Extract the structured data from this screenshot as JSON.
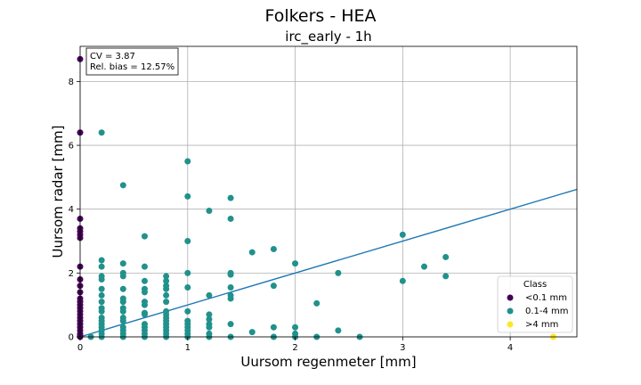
{
  "colors": {
    "class_lt01": "#440154",
    "class_01_4": "#21918c",
    "class_gt4": "#fde725",
    "fit_line": "#1f77b4",
    "grid": "#b0b0b0"
  },
  "chart_data": {
    "type": "scatter",
    "title": "Folkers - HEA",
    "subtitle": "irc_early - 1h",
    "xlabel": "Uursom regenmeter [mm]",
    "ylabel": "Uursom radar [mm]",
    "xlim": [
      0,
      4.62
    ],
    "ylim": [
      0,
      9.1
    ],
    "xticks": [
      0,
      1,
      2,
      3,
      4
    ],
    "yticks": [
      0,
      2,
      4,
      6,
      8
    ],
    "grid": true,
    "stats_box": {
      "cv": "CV = 3.87",
      "bias": "Rel. bias = 12.57%"
    },
    "legend": {
      "title": "Class",
      "position": "bottom-right"
    },
    "series": [
      {
        "name": "<0.1 mm",
        "color": "#440154",
        "points": [
          [
            0,
            8.7
          ],
          [
            0,
            6.4
          ],
          [
            0,
            3.7
          ],
          [
            0,
            3.4
          ],
          [
            0,
            3.3
          ],
          [
            0,
            3.2
          ],
          [
            0,
            3.1
          ],
          [
            0,
            2.2
          ],
          [
            0,
            1.8
          ],
          [
            0,
            1.6
          ],
          [
            0,
            1.4
          ],
          [
            0,
            1.2
          ],
          [
            0,
            1.1
          ],
          [
            0,
            1.0
          ],
          [
            0,
            0.9
          ],
          [
            0,
            0.8
          ],
          [
            0,
            0.7
          ],
          [
            0,
            0.6
          ],
          [
            0,
            0.5
          ],
          [
            0,
            0.4
          ],
          [
            0,
            0.3
          ],
          [
            0,
            0.2
          ],
          [
            0,
            0.1
          ],
          [
            0,
            0.05
          ],
          [
            0,
            0
          ]
        ]
      },
      {
        "name": "0.1-4 mm",
        "color": "#21918c",
        "points": [
          [
            0.1,
            0
          ],
          [
            0.2,
            6.4
          ],
          [
            0.2,
            2.4
          ],
          [
            0.2,
            2.2
          ],
          [
            0.2,
            1.9
          ],
          [
            0.2,
            1.8
          ],
          [
            0.2,
            1.5
          ],
          [
            0.2,
            1.3
          ],
          [
            0.2,
            1.1
          ],
          [
            0.2,
            0.9
          ],
          [
            0.2,
            0.8
          ],
          [
            0.2,
            0.6
          ],
          [
            0.2,
            0.5
          ],
          [
            0.2,
            0.4
          ],
          [
            0.2,
            0.3
          ],
          [
            0.2,
            0.2
          ],
          [
            0.2,
            0.1
          ],
          [
            0.2,
            0
          ],
          [
            0.4,
            4.75
          ],
          [
            0.4,
            2.3
          ],
          [
            0.4,
            2.0
          ],
          [
            0.4,
            1.9
          ],
          [
            0.4,
            1.5
          ],
          [
            0.4,
            1.2
          ],
          [
            0.4,
            1.1
          ],
          [
            0.4,
            0.9
          ],
          [
            0.4,
            0.8
          ],
          [
            0.4,
            0.6
          ],
          [
            0.4,
            0.5
          ],
          [
            0.4,
            0.3
          ],
          [
            0.4,
            0.2
          ],
          [
            0.4,
            0.1
          ],
          [
            0.4,
            0
          ],
          [
            0.6,
            3.15
          ],
          [
            0.6,
            2.2
          ],
          [
            0.6,
            1.75
          ],
          [
            0.6,
            1.5
          ],
          [
            0.6,
            1.4
          ],
          [
            0.6,
            1.1
          ],
          [
            0.6,
            1.0
          ],
          [
            0.6,
            0.75
          ],
          [
            0.6,
            0.7
          ],
          [
            0.6,
            0.4
          ],
          [
            0.6,
            0.3
          ],
          [
            0.6,
            0.2
          ],
          [
            0.6,
            0.1
          ],
          [
            0.6,
            0
          ],
          [
            0.8,
            1.9
          ],
          [
            0.8,
            1.75
          ],
          [
            0.8,
            1.6
          ],
          [
            0.8,
            1.5
          ],
          [
            0.8,
            1.3
          ],
          [
            0.8,
            1.1
          ],
          [
            0.8,
            0.8
          ],
          [
            0.8,
            0.7
          ],
          [
            0.8,
            0.6
          ],
          [
            0.8,
            0.5
          ],
          [
            0.8,
            0.4
          ],
          [
            0.8,
            0.3
          ],
          [
            0.8,
            0.2
          ],
          [
            0.8,
            0.1
          ],
          [
            0.8,
            0
          ],
          [
            1.0,
            5.5
          ],
          [
            1.0,
            4.4
          ],
          [
            1.0,
            3.0
          ],
          [
            1.0,
            2.0
          ],
          [
            1.0,
            1.55
          ],
          [
            1.0,
            0.8
          ],
          [
            1.0,
            0.5
          ],
          [
            1.0,
            0.4
          ],
          [
            1.0,
            0.3
          ],
          [
            1.0,
            0.2
          ],
          [
            1.0,
            0.1
          ],
          [
            1.0,
            0
          ],
          [
            1.2,
            3.95
          ],
          [
            1.2,
            1.3
          ],
          [
            1.2,
            0.7
          ],
          [
            1.2,
            0.55
          ],
          [
            1.2,
            0.4
          ],
          [
            1.2,
            0.3
          ],
          [
            1.2,
            0.1
          ],
          [
            1.2,
            0
          ],
          [
            1.4,
            4.35
          ],
          [
            1.4,
            3.7
          ],
          [
            1.4,
            2.0
          ],
          [
            1.4,
            1.95
          ],
          [
            1.4,
            1.55
          ],
          [
            1.4,
            1.3
          ],
          [
            1.4,
            1.2
          ],
          [
            1.4,
            0.4
          ],
          [
            1.4,
            0
          ],
          [
            1.6,
            2.65
          ],
          [
            1.6,
            0.15
          ],
          [
            1.8,
            2.75
          ],
          [
            1.8,
            1.6
          ],
          [
            1.8,
            0.3
          ],
          [
            1.8,
            0
          ],
          [
            2.0,
            2.3
          ],
          [
            2.0,
            0.3
          ],
          [
            2.0,
            0.1
          ],
          [
            2.0,
            0
          ],
          [
            2.2,
            1.05
          ],
          [
            2.2,
            0
          ],
          [
            2.4,
            2.0
          ],
          [
            2.4,
            0.2
          ],
          [
            2.6,
            0
          ],
          [
            3.0,
            3.2
          ],
          [
            3.0,
            1.75
          ],
          [
            3.2,
            2.2
          ],
          [
            3.4,
            2.5
          ],
          [
            3.4,
            1.9
          ]
        ]
      },
      {
        "name": ">4 mm",
        "color": "#fde725",
        "points": [
          [
            4.4,
            0
          ]
        ]
      }
    ],
    "fit_line": {
      "slope": 1.0,
      "intercept": 0
    }
  }
}
